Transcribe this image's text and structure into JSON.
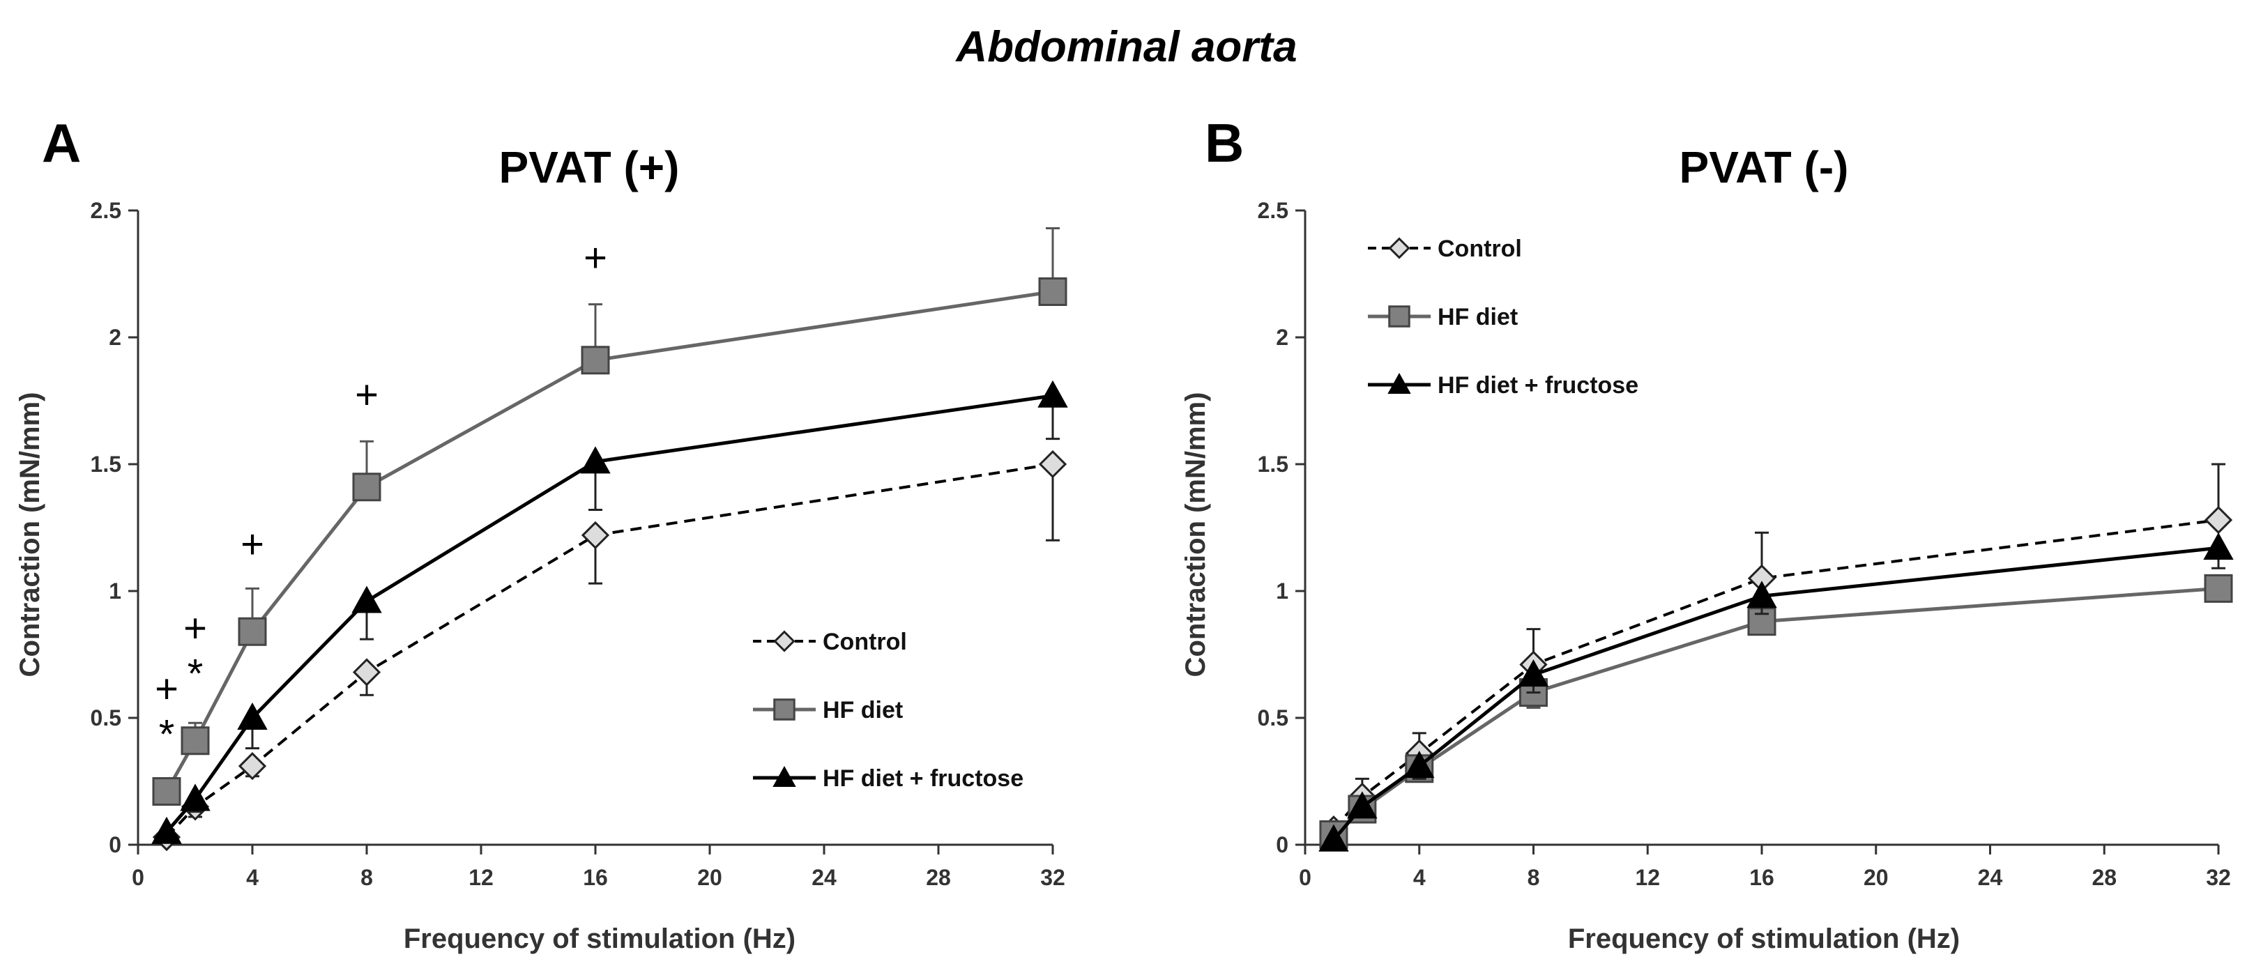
{
  "figure_title": "Abdominal aorta",
  "colors": {
    "control": "#000000",
    "hf": "#666666",
    "hff": "#000000",
    "control_fill": "#dddddd",
    "hf_fill": "#808080"
  },
  "chart_data": [
    {
      "type": "line",
      "panel": "A",
      "title": "PVAT (+)",
      "xlabel": "Frequency of stimulation (Hz)",
      "ylabel": "Contraction (mN/mm)",
      "xlim": [
        0,
        32
      ],
      "ylim": [
        0,
        2.5
      ],
      "xticks": [
        "0",
        "4",
        "8",
        "12",
        "16",
        "20",
        "24",
        "28",
        "32"
      ],
      "yticks": [
        "0",
        "0.5",
        "1",
        "1.5",
        "2",
        "2.5"
      ],
      "x": [
        1,
        2,
        4,
        8,
        16,
        32
      ],
      "legend_position": "lower-right",
      "series": [
        {
          "name": "Control",
          "values": [
            0.03,
            0.15,
            0.31,
            0.68,
            1.22,
            1.5
          ],
          "errors": [
            0.02,
            0.04,
            0.04,
            0.09,
            0.19,
            0.3
          ],
          "error_dir": "down"
        },
        {
          "name": "HF diet",
          "values": [
            0.21,
            0.41,
            0.84,
            1.41,
            1.91,
            2.18
          ],
          "errors": [
            0.04,
            0.07,
            0.17,
            0.18,
            0.22,
            0.25
          ],
          "error_dir": "up"
        },
        {
          "name": "HF diet + fructose",
          "values": [
            0.05,
            0.18,
            0.5,
            0.96,
            1.51,
            1.77
          ],
          "errors": [
            0.03,
            0.05,
            0.12,
            0.15,
            0.19,
            0.17
          ],
          "error_dir": "down"
        }
      ],
      "annotations": [
        {
          "text": "+",
          "x": 1,
          "y": 0.56
        },
        {
          "text": "*",
          "x": 1,
          "y": 0.38
        },
        {
          "text": "+",
          "x": 2,
          "y": 0.8
        },
        {
          "text": "*",
          "x": 2,
          "y": 0.62
        },
        {
          "text": "+",
          "x": 4,
          "y": 1.13
        },
        {
          "text": "+",
          "x": 8,
          "y": 1.72
        },
        {
          "text": "+",
          "x": 16,
          "y": 2.26
        }
      ]
    },
    {
      "type": "line",
      "panel": "B",
      "title": "PVAT (-)",
      "xlabel": "Frequency of stimulation (Hz)",
      "ylabel": "Contraction (mN/mm)",
      "xlim": [
        0,
        32
      ],
      "ylim": [
        0,
        2.5
      ],
      "xticks": [
        "0",
        "4",
        "8",
        "12",
        "16",
        "20",
        "24",
        "28",
        "32"
      ],
      "yticks": [
        "0",
        "0.5",
        "1",
        "1.5",
        "2",
        "2.5"
      ],
      "x": [
        1,
        2,
        4,
        8,
        16,
        32
      ],
      "legend_position": "top-left",
      "series": [
        {
          "name": "Control",
          "values": [
            0.06,
            0.19,
            0.36,
            0.71,
            1.05,
            1.28
          ],
          "errors": [
            0.03,
            0.07,
            0.08,
            0.14,
            0.18,
            0.22
          ],
          "error_dir": "up"
        },
        {
          "name": "HF diet",
          "values": [
            0.04,
            0.14,
            0.3,
            0.6,
            0.88,
            1.01
          ],
          "errors": [
            0.02,
            0.03,
            0.04,
            0.06,
            0.05,
            0.05
          ],
          "error_dir": "down"
        },
        {
          "name": "HF diet + fructose",
          "values": [
            0.02,
            0.15,
            0.31,
            0.67,
            0.98,
            1.17
          ],
          "errors": [
            0.02,
            0.04,
            0.05,
            0.07,
            0.07,
            0.08
          ],
          "error_dir": "down"
        }
      ],
      "annotations": []
    }
  ]
}
